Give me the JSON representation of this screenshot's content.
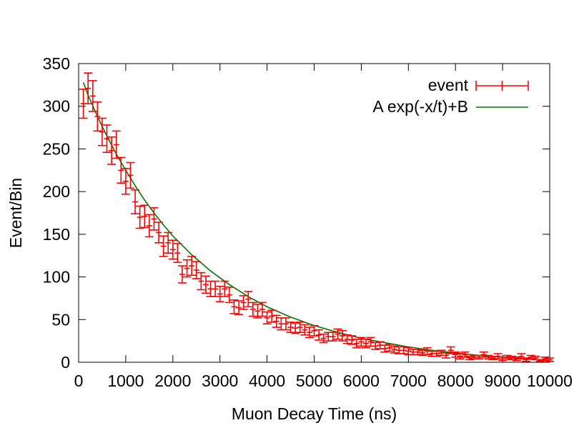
{
  "chart_data": {
    "type": "scatter",
    "xlabel": "Muon Decay Time (ns)",
    "ylabel": "Event/Bin",
    "xlim": [
      0,
      10000
    ],
    "ylim": [
      0,
      350
    ],
    "x_ticks": [
      0,
      1000,
      2000,
      3000,
      4000,
      5000,
      6000,
      7000,
      8000,
      9000,
      10000
    ],
    "y_ticks": [
      0,
      50,
      100,
      150,
      200,
      250,
      300,
      350
    ],
    "x_tick_labels": [
      "0",
      "1000",
      "2000",
      "3000",
      "4000",
      "5000",
      "6000",
      "7000",
      "8000",
      "9000",
      "10000"
    ],
    "y_tick_labels": [
      "0",
      "50",
      "100",
      "150",
      "200",
      "250",
      "300",
      "350"
    ],
    "grid": false,
    "legend_position": "top-right",
    "colors": {
      "event": "#ff0000",
      "fit": "#007700",
      "axis": "#000000"
    },
    "series": [
      {
        "name": "event",
        "style": "errorbars",
        "x": [
          100,
          200,
          300,
          400,
          500,
          600,
          700,
          800,
          900,
          1000,
          1100,
          1200,
          1300,
          1400,
          1500,
          1600,
          1700,
          1800,
          1900,
          2000,
          2100,
          2200,
          2300,
          2400,
          2500,
          2600,
          2700,
          2800,
          2900,
          3000,
          3100,
          3200,
          3300,
          3400,
          3500,
          3600,
          3700,
          3800,
          3900,
          4000,
          4100,
          4200,
          4300,
          4400,
          4500,
          4600,
          4700,
          4800,
          4900,
          5000,
          5100,
          5200,
          5300,
          5400,
          5500,
          5600,
          5700,
          5800,
          5900,
          6000,
          6100,
          6200,
          6300,
          6400,
          6500,
          6600,
          6700,
          6800,
          6900,
          7000,
          7100,
          7200,
          7300,
          7400,
          7500,
          7600,
          7700,
          7800,
          7900,
          8000,
          8100,
          8200,
          8300,
          8400,
          8500,
          8600,
          8700,
          8800,
          8900,
          9000,
          9100,
          9200,
          9300,
          9400,
          9500,
          9600,
          9700,
          9800,
          9900,
          10000
        ],
        "y": [
          303,
          321,
          312,
          288,
          270,
          262,
          248,
          255,
          225,
          212,
          219,
          188,
          170,
          171,
          160,
          168,
          152,
          136,
          140,
          132,
          128,
          103,
          110,
          113,
          108,
          95,
          91,
          86,
          86,
          80,
          86,
          79,
          65,
          64,
          70,
          74,
          62,
          60,
          62,
          52,
          54,
          48,
          45,
          45,
          41,
          40,
          41,
          38,
          35,
          37,
          32,
          28,
          30,
          30,
          33,
          31,
          27,
          26,
          22,
          24,
          22,
          24,
          19,
          20,
          16,
          17,
          15,
          14,
          14,
          13,
          12,
          12,
          11,
          13,
          10,
          10,
          11,
          8,
          14,
          9,
          7,
          9,
          5,
          6,
          6,
          9,
          6,
          5,
          7,
          4,
          6,
          5,
          4,
          7,
          3,
          6,
          5,
          2,
          4,
          3
        ],
        "err": [
          17,
          18,
          18,
          17,
          16,
          16,
          16,
          16,
          15,
          15,
          15,
          14,
          13,
          13,
          13,
          13,
          12,
          12,
          12,
          11,
          11,
          10,
          10,
          11,
          10,
          10,
          10,
          9,
          9,
          9,
          9,
          9,
          8,
          8,
          8,
          9,
          8,
          8,
          8,
          7,
          7,
          7,
          7,
          7,
          6,
          6,
          6,
          6,
          6,
          6,
          6,
          5,
          5,
          5,
          6,
          6,
          5,
          5,
          5,
          5,
          5,
          5,
          4,
          4,
          4,
          4,
          4,
          4,
          4,
          4,
          3,
          3,
          3,
          4,
          3,
          3,
          3,
          3,
          4,
          3,
          3,
          3,
          2,
          2,
          2,
          3,
          2,
          2,
          3,
          2,
          2,
          2,
          2,
          3,
          2,
          2,
          2,
          1,
          2,
          2
        ]
      },
      {
        "name": "A exp(-x/t)+B",
        "style": "line",
        "x": [
          100,
          200,
          400,
          600,
          800,
          1000,
          1200,
          1400,
          1600,
          1800,
          2000,
          2400,
          2800,
          3200,
          3600,
          4000,
          4500,
          5000,
          5500,
          6000,
          6500,
          7000,
          7500,
          8000,
          8500,
          9000,
          9500,
          10000
        ],
        "y": [
          328,
          313,
          288,
          265,
          244,
          225,
          207,
          190,
          175,
          161,
          148,
          126,
          107,
          91,
          77,
          65,
          53,
          43,
          35,
          28,
          23,
          18,
          14,
          11,
          8,
          6,
          4,
          2
        ]
      }
    ]
  }
}
